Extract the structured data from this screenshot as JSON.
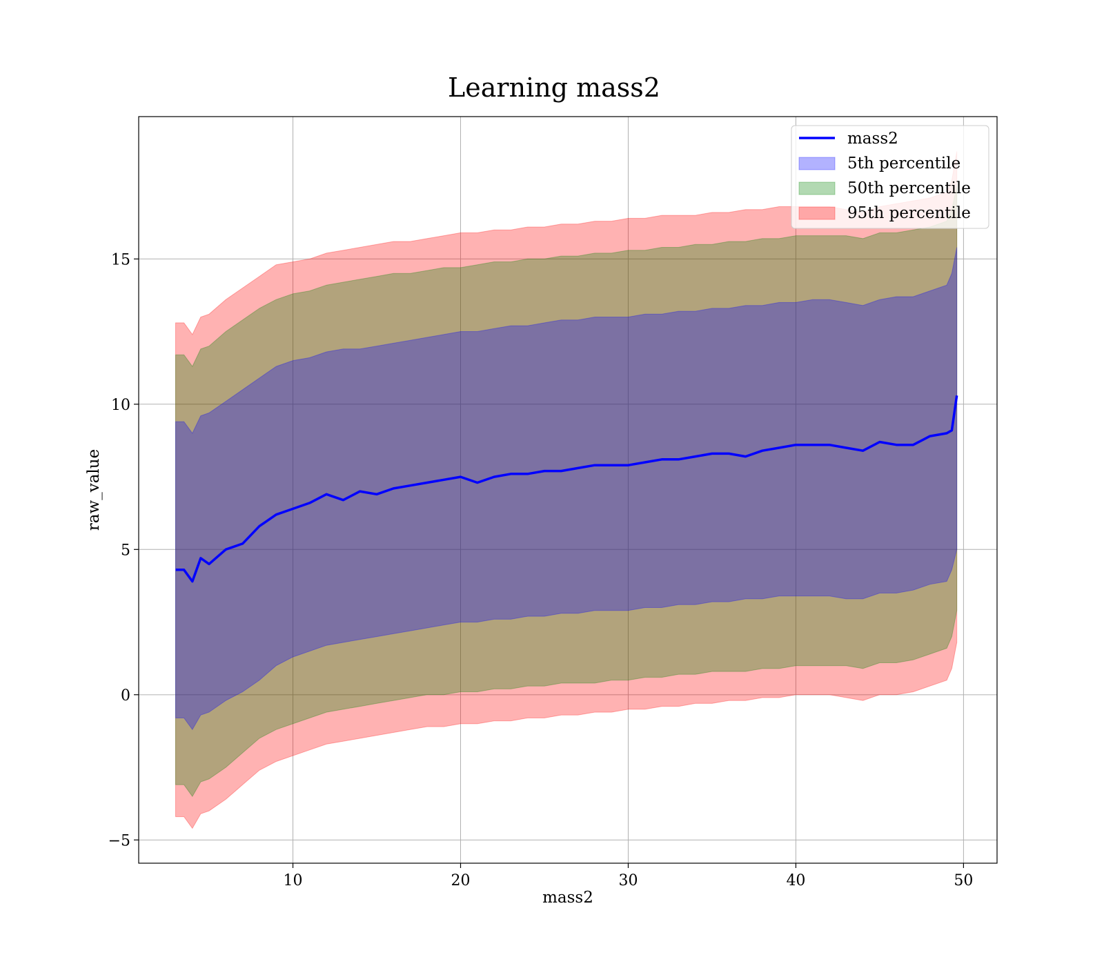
{
  "chart_data": {
    "type": "area",
    "title": "Learning mass2",
    "xlabel": "mass2",
    "ylabel": "raw_value",
    "xlim": [
      0.8,
      52.0
    ],
    "ylim": [
      -5.8,
      19.9
    ],
    "xticks": [
      10,
      20,
      30,
      40,
      50
    ],
    "yticks": [
      -5,
      0,
      5,
      10,
      15
    ],
    "xtick_labels": [
      "10",
      "20",
      "30",
      "40",
      "50"
    ],
    "ytick_labels": [
      "−5",
      "0",
      "5",
      "10",
      "15"
    ],
    "grid": true,
    "legend_position": "top-right",
    "x": [
      3.0,
      3.5,
      4.0,
      4.5,
      5.0,
      6.0,
      7.0,
      8.0,
      9.0,
      10.0,
      11.0,
      12.0,
      13.0,
      14.0,
      15.0,
      16.0,
      17.0,
      18.0,
      19.0,
      20.0,
      21.0,
      22.0,
      23.0,
      24.0,
      25.0,
      26.0,
      27.0,
      28.0,
      29.0,
      30.0,
      31.0,
      32.0,
      33.0,
      34.0,
      35.0,
      36.0,
      37.0,
      38.0,
      39.0,
      40.0,
      41.0,
      42.0,
      43.0,
      44.0,
      45.0,
      46.0,
      47.0,
      48.0,
      49.0,
      49.3,
      49.6
    ],
    "series": [
      {
        "name": "mass2",
        "kind": "line",
        "color": "#0000ff",
        "values": [
          4.3,
          4.3,
          3.9,
          4.7,
          4.5,
          5.0,
          5.2,
          5.8,
          6.2,
          6.4,
          6.6,
          6.9,
          6.7,
          7.0,
          6.9,
          7.1,
          7.2,
          7.3,
          7.4,
          7.5,
          7.3,
          7.5,
          7.6,
          7.6,
          7.7,
          7.7,
          7.8,
          7.9,
          7.9,
          7.9,
          8.0,
          8.1,
          8.1,
          8.2,
          8.3,
          8.3,
          8.2,
          8.4,
          8.5,
          8.6,
          8.6,
          8.6,
          8.5,
          8.4,
          8.7,
          8.6,
          8.6,
          8.9,
          9.0,
          9.1,
          10.3
        ]
      },
      {
        "name": "5th percentile",
        "kind": "band",
        "color": "#0000ff",
        "lower": [
          -0.8,
          -0.8,
          -1.2,
          -0.7,
          -0.6,
          -0.2,
          0.1,
          0.5,
          1.0,
          1.3,
          1.5,
          1.7,
          1.8,
          1.9,
          2.0,
          2.1,
          2.2,
          2.3,
          2.4,
          2.5,
          2.5,
          2.6,
          2.6,
          2.7,
          2.7,
          2.8,
          2.8,
          2.9,
          2.9,
          2.9,
          3.0,
          3.0,
          3.1,
          3.1,
          3.2,
          3.2,
          3.3,
          3.3,
          3.4,
          3.4,
          3.4,
          3.4,
          3.3,
          3.3,
          3.5,
          3.5,
          3.6,
          3.8,
          3.9,
          4.3,
          5.0
        ],
        "upper": [
          9.4,
          9.4,
          9.0,
          9.6,
          9.7,
          10.1,
          10.5,
          10.9,
          11.3,
          11.5,
          11.6,
          11.8,
          11.9,
          11.9,
          12.0,
          12.1,
          12.2,
          12.3,
          12.4,
          12.5,
          12.5,
          12.6,
          12.7,
          12.7,
          12.8,
          12.9,
          12.9,
          13.0,
          13.0,
          13.0,
          13.1,
          13.1,
          13.2,
          13.2,
          13.3,
          13.3,
          13.4,
          13.4,
          13.5,
          13.5,
          13.6,
          13.6,
          13.5,
          13.4,
          13.6,
          13.7,
          13.7,
          13.9,
          14.1,
          14.5,
          15.4
        ]
      },
      {
        "name": "50th percentile",
        "kind": "band",
        "color": "#008000",
        "lower": [
          -3.1,
          -3.1,
          -3.5,
          -3.0,
          -2.9,
          -2.5,
          -2.0,
          -1.5,
          -1.2,
          -1.0,
          -0.8,
          -0.6,
          -0.5,
          -0.4,
          -0.3,
          -0.2,
          -0.1,
          0.0,
          0.0,
          0.1,
          0.1,
          0.2,
          0.2,
          0.3,
          0.3,
          0.4,
          0.4,
          0.4,
          0.5,
          0.5,
          0.6,
          0.6,
          0.7,
          0.7,
          0.8,
          0.8,
          0.8,
          0.9,
          0.9,
          1.0,
          1.0,
          1.0,
          1.0,
          0.9,
          1.1,
          1.1,
          1.2,
          1.4,
          1.6,
          2.0,
          2.9
        ],
        "upper": [
          11.7,
          11.7,
          11.3,
          11.9,
          12.0,
          12.5,
          12.9,
          13.3,
          13.6,
          13.8,
          13.9,
          14.1,
          14.2,
          14.3,
          14.4,
          14.5,
          14.5,
          14.6,
          14.7,
          14.7,
          14.8,
          14.9,
          14.9,
          15.0,
          15.0,
          15.1,
          15.1,
          15.2,
          15.2,
          15.3,
          15.3,
          15.4,
          15.4,
          15.5,
          15.5,
          15.6,
          15.6,
          15.7,
          15.7,
          15.8,
          15.8,
          15.8,
          15.8,
          15.7,
          15.9,
          15.9,
          16.0,
          16.1,
          16.3,
          16.7,
          17.5
        ]
      },
      {
        "name": "95th percentile",
        "kind": "band",
        "color": "#ff0000",
        "lower": [
          -4.2,
          -4.2,
          -4.6,
          -4.1,
          -4.0,
          -3.6,
          -3.1,
          -2.6,
          -2.3,
          -2.1,
          -1.9,
          -1.7,
          -1.6,
          -1.5,
          -1.4,
          -1.3,
          -1.2,
          -1.1,
          -1.1,
          -1.0,
          -1.0,
          -0.9,
          -0.9,
          -0.8,
          -0.8,
          -0.7,
          -0.7,
          -0.6,
          -0.6,
          -0.5,
          -0.5,
          -0.4,
          -0.4,
          -0.3,
          -0.3,
          -0.2,
          -0.2,
          -0.1,
          -0.1,
          0.0,
          0.0,
          0.0,
          -0.1,
          -0.2,
          0.0,
          0.0,
          0.1,
          0.3,
          0.5,
          0.9,
          1.8
        ],
        "upper": [
          12.8,
          12.8,
          12.4,
          13.0,
          13.1,
          13.6,
          14.0,
          14.4,
          14.8,
          14.9,
          15.0,
          15.2,
          15.3,
          15.4,
          15.5,
          15.6,
          15.6,
          15.7,
          15.8,
          15.9,
          15.9,
          16.0,
          16.0,
          16.1,
          16.1,
          16.2,
          16.2,
          16.3,
          16.3,
          16.4,
          16.4,
          16.5,
          16.5,
          16.5,
          16.6,
          16.6,
          16.7,
          16.7,
          16.8,
          16.8,
          16.8,
          16.8,
          16.7,
          16.6,
          16.8,
          16.9,
          17.0,
          17.1,
          17.3,
          17.7,
          18.7
        ]
      }
    ]
  }
}
